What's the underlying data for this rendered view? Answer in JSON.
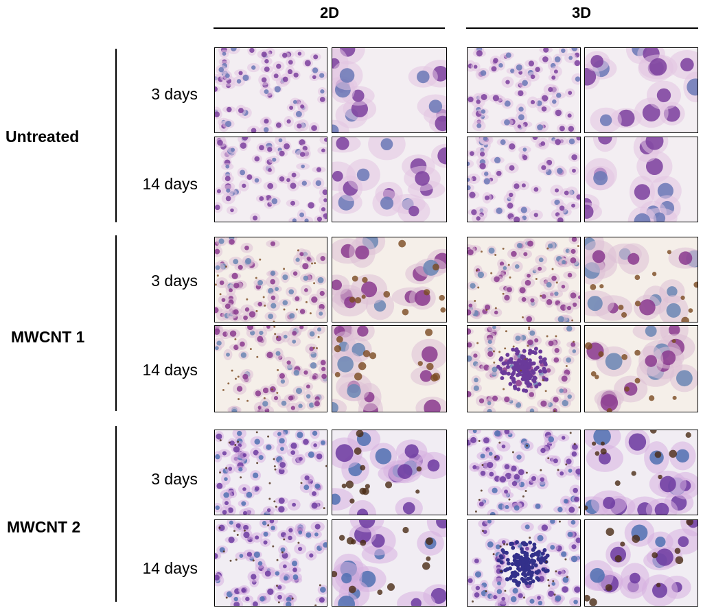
{
  "columns": [
    {
      "label": "2D"
    },
    {
      "label": "3D"
    }
  ],
  "groups": [
    {
      "label": "Untreated"
    },
    {
      "label": "MWCNT 1"
    },
    {
      "label": "MWCNT 2"
    }
  ],
  "rows": [
    "3 days",
    "14 days",
    "3 days",
    "14 days",
    "3 days",
    "14 days"
  ],
  "colors": {
    "background": "#ffffff",
    "cytoplasm": "#d8a8d8",
    "nucleus": "#7a3a9a",
    "nucleus_blue": "#5878b0",
    "particle": "#7a4a20"
  }
}
